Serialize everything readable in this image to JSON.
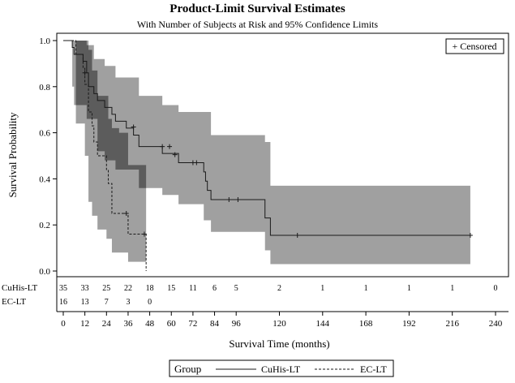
{
  "chart_data": {
    "type": "survival-step",
    "title": "Product-Limit Survival Estimates",
    "subtitle": "With Number of Subjects at Risk and 95% Confidence Limits",
    "xlabel": "Survival Time (months)",
    "ylabel": "Survival Probability",
    "xlim": [
      0,
      240
    ],
    "ylim": [
      0,
      1
    ],
    "xticks": [
      "0",
      "12",
      "24",
      "36",
      "48",
      "60",
      "72",
      "84",
      "96",
      "120",
      "144",
      "168",
      "192",
      "216",
      "240"
    ],
    "xtick_values": [
      0,
      12,
      24,
      36,
      48,
      60,
      72,
      84,
      96,
      120,
      144,
      168,
      192,
      216,
      240
    ],
    "yticks": [
      "0.0",
      "0.2",
      "0.4",
      "0.6",
      "0.8",
      "1.0"
    ],
    "ytick_values": [
      0,
      0.2,
      0.4,
      0.6,
      0.8,
      1.0
    ],
    "censored_legend": "+ Censored",
    "legend_title": "Group",
    "series": [
      {
        "name": "CuHis-LT",
        "style": "solid",
        "steps": [
          [
            0,
            1.0
          ],
          [
            5,
            0.97
          ],
          [
            6,
            0.94
          ],
          [
            11,
            0.91
          ],
          [
            13,
            0.86
          ],
          [
            14,
            0.8
          ],
          [
            17,
            0.77
          ],
          [
            19,
            0.74
          ],
          [
            23,
            0.71
          ],
          [
            27,
            0.68
          ],
          [
            29,
            0.65
          ],
          [
            35,
            0.62
          ],
          [
            39,
            0.59
          ],
          [
            42,
            0.54
          ],
          [
            55,
            0.51
          ],
          [
            64,
            0.47
          ],
          [
            78,
            0.43
          ],
          [
            79,
            0.39
          ],
          [
            80,
            0.35
          ],
          [
            82,
            0.31
          ],
          [
            112,
            0.23
          ],
          [
            115,
            0.155
          ],
          [
            226,
            0.155
          ]
        ],
        "ci_upper": [
          [
            0,
            1.0
          ],
          [
            5,
            1.0
          ],
          [
            13,
            0.98
          ],
          [
            17,
            0.92
          ],
          [
            23,
            0.89
          ],
          [
            29,
            0.84
          ],
          [
            42,
            0.76
          ],
          [
            55,
            0.72
          ],
          [
            64,
            0.69
          ],
          [
            82,
            0.59
          ],
          [
            112,
            0.56
          ],
          [
            115,
            0.37
          ],
          [
            226,
            0.37
          ]
        ],
        "ci_lower": [
          [
            0,
            1.0
          ],
          [
            5,
            0.8
          ],
          [
            6,
            0.72
          ],
          [
            13,
            0.66
          ],
          [
            19,
            0.52
          ],
          [
            23,
            0.48
          ],
          [
            29,
            0.44
          ],
          [
            42,
            0.36
          ],
          [
            55,
            0.33
          ],
          [
            64,
            0.29
          ],
          [
            78,
            0.22
          ],
          [
            82,
            0.17
          ],
          [
            112,
            0.09
          ],
          [
            115,
            0.03
          ],
          [
            226,
            0.03
          ]
        ],
        "censored": [
          [
            12,
            0.86
          ],
          [
            39,
            0.625
          ],
          [
            55,
            0.54
          ],
          [
            59,
            0.54
          ],
          [
            62,
            0.505
          ],
          [
            72,
            0.47
          ],
          [
            74,
            0.47
          ],
          [
            92,
            0.31
          ],
          [
            97,
            0.31
          ],
          [
            130,
            0.155
          ],
          [
            226,
            0.155
          ]
        ]
      },
      {
        "name": "EC-LT",
        "style": "dashed",
        "steps": [
          [
            0,
            1.0
          ],
          [
            7,
            0.94
          ],
          [
            11,
            0.88
          ],
          [
            12,
            0.81
          ],
          [
            14,
            0.69
          ],
          [
            16,
            0.63
          ],
          [
            17,
            0.56
          ],
          [
            19,
            0.5
          ],
          [
            24,
            0.44
          ],
          [
            25,
            0.38
          ],
          [
            27,
            0.25
          ],
          [
            36,
            0.16
          ],
          [
            46,
            0.16
          ],
          [
            46,
            0.0
          ]
        ],
        "ci_upper": [
          [
            0,
            1.0
          ],
          [
            7,
            1.0
          ],
          [
            14,
            0.96
          ],
          [
            16,
            0.87
          ],
          [
            19,
            0.76
          ],
          [
            25,
            0.66
          ],
          [
            27,
            0.62
          ],
          [
            31,
            0.6
          ],
          [
            36,
            0.46
          ],
          [
            46,
            0.46
          ]
        ],
        "ci_lower": [
          [
            0,
            1.0
          ],
          [
            7,
            0.64
          ],
          [
            12,
            0.5
          ],
          [
            14,
            0.3
          ],
          [
            16,
            0.24
          ],
          [
            19,
            0.18
          ],
          [
            24,
            0.14
          ],
          [
            27,
            0.08
          ],
          [
            36,
            0.04
          ],
          [
            46,
            0.04
          ]
        ],
        "censored": [
          [
            35,
            0.25
          ],
          [
            45,
            0.16
          ]
        ]
      }
    ],
    "at_risk": {
      "x": [
        0,
        12,
        24,
        36,
        48,
        60,
        72,
        84,
        96,
        120,
        144,
        168,
        192,
        216,
        240
      ],
      "rows": [
        {
          "label": "CuHis-LT",
          "counts": [
            "35",
            "33",
            "25",
            "22",
            "18",
            "15",
            "11",
            "6",
            "5",
            "2",
            "1",
            "1",
            "1",
            "1",
            "0"
          ]
        },
        {
          "label": "EC-LT",
          "counts": [
            "16",
            "13",
            "7",
            "3",
            "0"
          ]
        }
      ]
    }
  },
  "colors": {
    "band": "#a0a0a0",
    "band_overlap": "#5c5c5c",
    "line": "#1a1a1a"
  }
}
